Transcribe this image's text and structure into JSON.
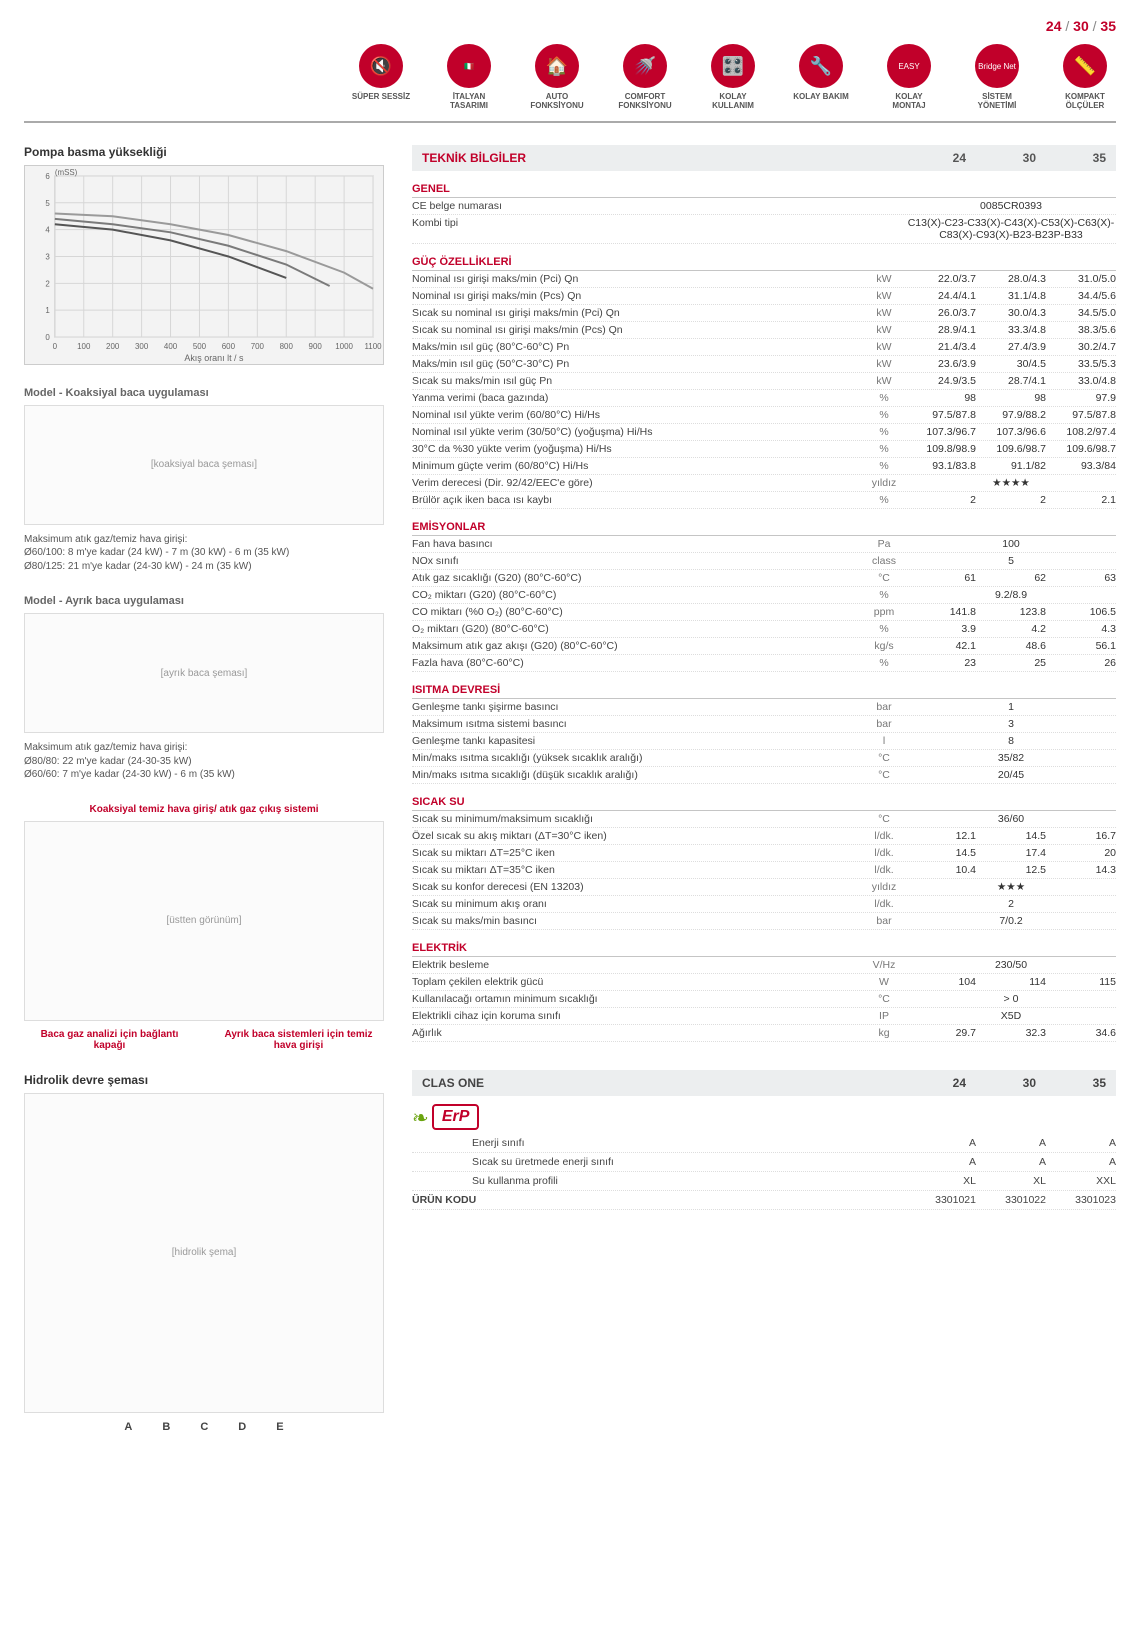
{
  "header_models": [
    "24",
    "30",
    "35"
  ],
  "features": [
    {
      "label": "SÜPER SESSİZ",
      "icon": "🔇"
    },
    {
      "label": "İTALYAN TASARIMI",
      "icon": "🇮🇹"
    },
    {
      "label": "AUTO FONKSİYONU",
      "icon": "🏠"
    },
    {
      "label": "COMFORT FONKSİYONU",
      "icon": "🚿"
    },
    {
      "label": "KOLAY KULLANIM",
      "icon": "🎛️"
    },
    {
      "label": "KOLAY BAKIM",
      "icon": "🔧"
    },
    {
      "label": "KOLAY MONTAJ",
      "icon": "EASY"
    },
    {
      "label": "SİSTEM YÖNETİMİ",
      "icon": "Bridge Net"
    },
    {
      "label": "KOMPAKT ÖLÇÜLER",
      "icon": "📏"
    }
  ],
  "pump": {
    "title": "Pompa basma yüksekliği",
    "y_unit": "(mSS)",
    "x_label": "Akış oranı lt / s",
    "x_ticks": [
      0,
      100,
      200,
      300,
      400,
      500,
      600,
      700,
      800,
      900,
      1000,
      1100
    ],
    "y_ticks": [
      0,
      1,
      2,
      3,
      4,
      5,
      6
    ],
    "lines": [
      {
        "color": "#7a7a7a",
        "pts": [
          [
            0,
            4.4
          ],
          [
            200,
            4.2
          ],
          [
            400,
            3.9
          ],
          [
            600,
            3.4
          ],
          [
            800,
            2.7
          ],
          [
            950,
            1.9
          ]
        ]
      },
      {
        "color": "#9a9a9a",
        "pts": [
          [
            0,
            4.6
          ],
          [
            200,
            4.5
          ],
          [
            400,
            4.2
          ],
          [
            600,
            3.8
          ],
          [
            800,
            3.2
          ],
          [
            1000,
            2.4
          ],
          [
            1100,
            1.8
          ]
        ]
      },
      {
        "color": "#555",
        "pts": [
          [
            0,
            4.2
          ],
          [
            200,
            4.0
          ],
          [
            400,
            3.6
          ],
          [
            600,
            3.0
          ],
          [
            800,
            2.2
          ]
        ]
      }
    ],
    "bg": "#f3f3f3",
    "grid": "#d6d6d6"
  },
  "flue1": {
    "title": "Model - Koaksiyal baca uygulaması",
    "note_title": "Maksimum atık gaz/temiz hava girişi:",
    "notes": [
      "Ø60/100: 8 m'ye kadar (24 kW) - 7 m (30 kW) - 6 m (35 kW)",
      "Ø80/125: 21 m'ye kadar (24-30 kW) - 24 m (35 kW)"
    ]
  },
  "flue2": {
    "title": "Model - Ayrık baca uygulaması",
    "note_title": "Maksimum atık gaz/temiz hava girişi:",
    "notes": [
      "Ø80/80: 22 m'ye kadar (24-30-35 kW)",
      "Ø60/60: 7 m'ye kadar (24-30 kW) - 6 m (35 kW)"
    ]
  },
  "callouts": {
    "a": "Koaksiyal temiz hava giriş/ atık gaz çıkış sistemi",
    "b": "Baca gaz analizi için bağlantı kapağı",
    "c": "Ayrık baca sistemleri için temiz hava girişi"
  },
  "hydraulic_title": "Hidrolik devre şeması",
  "hydraulic_legend": [
    "A",
    "B",
    "C",
    "D",
    "E"
  ],
  "spec_header": {
    "title": "TEKNİK BİLGİLER",
    "cols": [
      "24",
      "30",
      "35"
    ]
  },
  "sections": [
    {
      "title": "GENEL",
      "rows": [
        {
          "l": "CE belge numarası",
          "u": "",
          "span": "0085CR0393"
        },
        {
          "l": "Kombi tipi",
          "u": "",
          "span": "C13(X)-C23-C33(X)-C43(X)-C53(X)-C63(X)-C83(X)-C93(X)-B23-B23P-B33"
        }
      ]
    },
    {
      "title": "GÜÇ ÖZELLİKLERİ",
      "rows": [
        {
          "l": "Nominal ısı girişi maks/min (Pci) Qn",
          "u": "kW",
          "v": [
            "22.0/3.7",
            "28.0/4.3",
            "31.0/5.0"
          ]
        },
        {
          "l": "Nominal ısı girişi maks/min (Pcs) Qn",
          "u": "kW",
          "v": [
            "24.4/4.1",
            "31.1/4.8",
            "34.4/5.6"
          ]
        },
        {
          "l": "Sıcak su nominal ısı girişi maks/min (Pci) Qn",
          "u": "kW",
          "v": [
            "26.0/3.7",
            "30.0/4.3",
            "34.5/5.0"
          ]
        },
        {
          "l": "Sıcak su nominal ısı girişi maks/min (Pcs) Qn",
          "u": "kW",
          "v": [
            "28.9/4.1",
            "33.3/4.8",
            "38.3/5.6"
          ]
        },
        {
          "l": "Maks/min ısıl güç (80°C-60°C) Pn",
          "u": "kW",
          "v": [
            "21.4/3.4",
            "27.4/3.9",
            "30.2/4.7"
          ]
        },
        {
          "l": "Maks/min ısıl güç (50°C-30°C) Pn",
          "u": "kW",
          "v": [
            "23.6/3.9",
            "30/4.5",
            "33.5/5.3"
          ]
        },
        {
          "l": "Sıcak su maks/min ısıl güç Pn",
          "u": "kW",
          "v": [
            "24.9/3.5",
            "28.7/4.1",
            "33.0/4.8"
          ]
        },
        {
          "l": "Yanma verimi (baca gazında)",
          "u": "%",
          "v": [
            "98",
            "98",
            "97.9"
          ]
        },
        {
          "l": "Nominal ısıl yükte verim (60/80°C) Hi/Hs",
          "u": "%",
          "v": [
            "97.5/87.8",
            "97.9/88.2",
            "97.5/87.8"
          ]
        },
        {
          "l": "Nominal ısıl yükte verim (30/50°C) (yoğuşma) Hi/Hs",
          "u": "%",
          "v": [
            "107.3/96.7",
            "107.3/96.6",
            "108.2/97.4"
          ]
        },
        {
          "l": "30°C da %30 yükte verim (yoğuşma) Hi/Hs",
          "u": "%",
          "v": [
            "109.8/98.9",
            "109.6/98.7",
            "109.6/98.7"
          ]
        },
        {
          "l": "Minimum güçte verim (60/80°C) Hi/Hs",
          "u": "%",
          "v": [
            "93.1/83.8",
            "91.1/82",
            "93.3/84"
          ]
        },
        {
          "l": "Verim derecesi (Dir. 92/42/EEC'e göre)",
          "u": "yıldız",
          "span": "★★★★"
        },
        {
          "l": "Brülör açık iken baca ısı kaybı",
          "u": "%",
          "v": [
            "2",
            "2",
            "2.1"
          ]
        }
      ]
    },
    {
      "title": "EMİSYONLAR",
      "rows": [
        {
          "l": "Fan hava basıncı",
          "u": "Pa",
          "span": "100"
        },
        {
          "l": "NOx sınıfı",
          "u": "class",
          "span": "5"
        },
        {
          "l": "Atık gaz sıcaklığı (G20) (80°C-60°C)",
          "u": "°C",
          "v": [
            "61",
            "62",
            "63"
          ]
        },
        {
          "l": "CO₂ miktarı (G20) (80°C-60°C)",
          "u": "%",
          "span": "9.2/8.9"
        },
        {
          "l": "CO miktarı (%0 O₂) (80°C-60°C)",
          "u": "ppm",
          "v": [
            "141.8",
            "123.8",
            "106.5"
          ]
        },
        {
          "l": "O₂ miktarı (G20) (80°C-60°C)",
          "u": "%",
          "v": [
            "3.9",
            "4.2",
            "4.3"
          ]
        },
        {
          "l": "Maksimum atık gaz akışı (G20) (80°C-60°C)",
          "u": "kg/s",
          "v": [
            "42.1",
            "48.6",
            "56.1"
          ]
        },
        {
          "l": "Fazla hava (80°C-60°C)",
          "u": "%",
          "v": [
            "23",
            "25",
            "26"
          ]
        }
      ]
    },
    {
      "title": "ISITMA DEVRESİ",
      "rows": [
        {
          "l": "Genleşme tankı şişirme basıncı",
          "u": "bar",
          "span": "1"
        },
        {
          "l": "Maksimum ısıtma sistemi basıncı",
          "u": "bar",
          "span": "3"
        },
        {
          "l": "Genleşme tankı kapasitesi",
          "u": "l",
          "span": "8"
        },
        {
          "l": "Min/maks ısıtma sıcaklığı (yüksek sıcaklık aralığı)",
          "u": "°C",
          "span": "35/82"
        },
        {
          "l": "Min/maks ısıtma sıcaklığı (düşük sıcaklık aralığı)",
          "u": "°C",
          "span": "20/45"
        }
      ]
    },
    {
      "title": "SICAK SU",
      "rows": [
        {
          "l": "Sıcak su minimum/maksimum sıcaklığı",
          "u": "°C",
          "span": "36/60"
        },
        {
          "l": "Özel sıcak su akış miktarı (ΔT=30°C iken)",
          "u": "l/dk.",
          "v": [
            "12.1",
            "14.5",
            "16.7"
          ]
        },
        {
          "l": "Sıcak su miktarı ΔT=25°C iken",
          "u": "l/dk.",
          "v": [
            "14.5",
            "17.4",
            "20"
          ]
        },
        {
          "l": "Sıcak su miktarı ΔT=35°C iken",
          "u": "l/dk.",
          "v": [
            "10.4",
            "12.5",
            "14.3"
          ]
        },
        {
          "l": "Sıcak su konfor derecesi (EN 13203)",
          "u": "yıldız",
          "span": "★★★"
        },
        {
          "l": "Sıcak su minimum akış oranı",
          "u": "l/dk.",
          "span": "2"
        },
        {
          "l": "Sıcak su maks/min basıncı",
          "u": "bar",
          "span": "7/0.2"
        }
      ]
    },
    {
      "title": "ELEKTRİK",
      "rows": [
        {
          "l": "Elektrik besleme",
          "u": "V/Hz",
          "span": "230/50"
        },
        {
          "l": "Toplam çekilen elektrik gücü",
          "u": "W",
          "v": [
            "104",
            "114",
            "115"
          ]
        },
        {
          "l": "Kullanılacağı ortamın minimum sıcaklığı",
          "u": "°C",
          "span": "> 0"
        },
        {
          "l": "Elektrikli cihaz için koruma sınıfı",
          "u": "IP",
          "span": "X5D"
        },
        {
          "l": "Ağırlık",
          "u": "kg",
          "v": [
            "29.7",
            "32.3",
            "34.6"
          ]
        }
      ]
    }
  ],
  "erp": {
    "title": "CLAS ONE",
    "cols": [
      "24",
      "30",
      "35"
    ],
    "rows": [
      {
        "l": "Enerji sınıfı",
        "v": [
          "A",
          "A",
          "A"
        ]
      },
      {
        "l": "Sıcak su üretmede enerji sınıfı",
        "v": [
          "A",
          "A",
          "A"
        ]
      },
      {
        "l": "Su kullanma profili",
        "v": [
          "XL",
          "XL",
          "XXL"
        ]
      }
    ],
    "code_label": "ÜRÜN KODU",
    "codes": [
      "3301021",
      "3301022",
      "3301023"
    ]
  }
}
